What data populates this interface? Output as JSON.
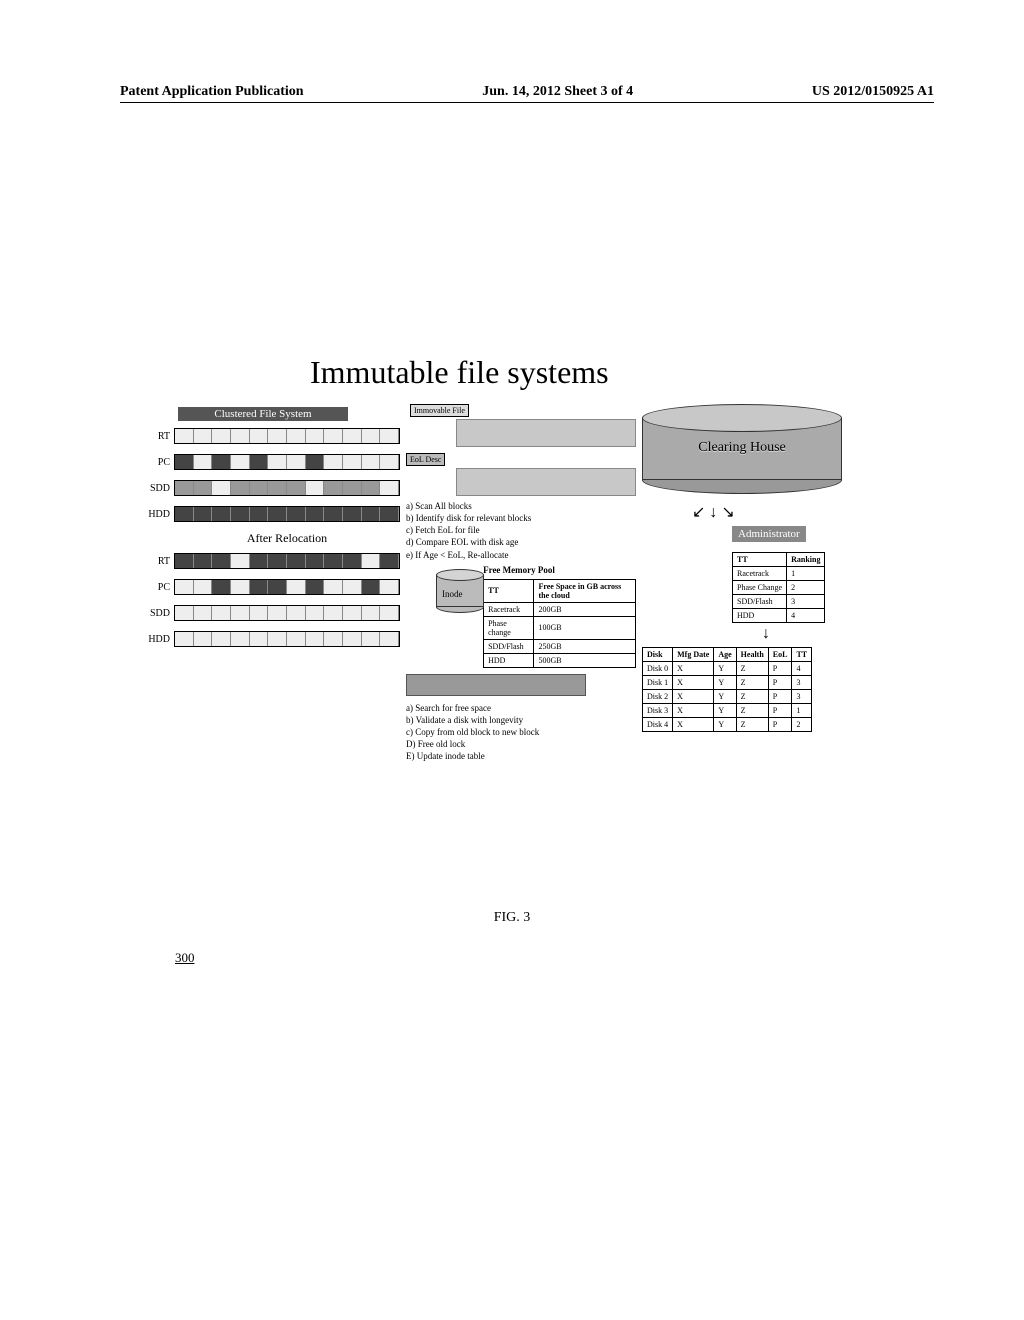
{
  "header": {
    "left": "Patent Application Publication",
    "center": "Jun. 14, 2012  Sheet 3 of 4",
    "right": "US 2012/0150925 A1"
  },
  "title": "Immutable file systems",
  "cfs": {
    "label": "Clustered File System",
    "rows": [
      "RT",
      "PC",
      "SDD",
      "HDD"
    ],
    "after_label": "After Relocation"
  },
  "mid": {
    "immovable": "Immovable File",
    "eol": "EoL Desc",
    "steps1": [
      "a) Scan All blocks",
      "b) Identify disk for relevant blocks",
      "c) Fetch EoL for file",
      "d) Compare EOL with disk age",
      "e) If Age < EoL, Re-allocate"
    ],
    "inode": "Inode",
    "pool_title": "Free Memory Pool",
    "pool": {
      "columns": [
        "TT",
        "Free Space in GB across the cloud"
      ],
      "rows": [
        [
          "Racetrack",
          "200GB"
        ],
        [
          "Phase change",
          "100GB"
        ],
        [
          "SDD/Flash",
          "250GB"
        ],
        [
          "HDD",
          "500GB"
        ]
      ]
    },
    "steps2": [
      "a) Search for free space",
      "b) Validate a disk with longevity",
      "c) Copy from old block to new block",
      "D) Free old lock",
      "E) Update inode table"
    ]
  },
  "right": {
    "clearing": "Clearing House",
    "admin": "Administrator",
    "rank": {
      "columns": [
        "TT",
        "Ranking"
      ],
      "rows": [
        [
          "Racetrack",
          "1"
        ],
        [
          "Phase Change",
          "2"
        ],
        [
          "SDD/Flash",
          "3"
        ],
        [
          "HDD",
          "4"
        ]
      ]
    },
    "disk": {
      "columns": [
        "Disk",
        "Mfg Date",
        "Age",
        "Health",
        "EoL",
        "TT"
      ],
      "rows": [
        [
          "Disk 0",
          "X",
          "Y",
          "Z",
          "P",
          "4"
        ],
        [
          "Disk 1",
          "X",
          "Y",
          "Z",
          "P",
          "3"
        ],
        [
          "Disk 2",
          "X",
          "Y",
          "Z",
          "P",
          "3"
        ],
        [
          "Disk 3",
          "X",
          "Y",
          "Z",
          "P",
          "1"
        ],
        [
          "Disk 4",
          "X",
          "Y",
          "Z",
          "P",
          "2"
        ]
      ]
    }
  },
  "figure": {
    "caption": "FIG. 3",
    "number": "300"
  },
  "bar_segments": {
    "before": {
      "RT": [
        "light",
        "light",
        "light",
        "light",
        "light",
        "light",
        "light",
        "light",
        "light",
        "light",
        "light",
        "light"
      ],
      "PC": [
        "dark",
        "light",
        "dark",
        "light",
        "dark",
        "light",
        "light",
        "dark",
        "light",
        "light",
        "light",
        "light"
      ],
      "SDD": [
        "mid",
        "mid",
        "light",
        "mid",
        "mid",
        "mid",
        "mid",
        "light",
        "mid",
        "mid",
        "mid",
        "light"
      ],
      "HDD": [
        "dark",
        "dark",
        "dark",
        "dark",
        "dark",
        "dark",
        "dark",
        "dark",
        "dark",
        "dark",
        "dark",
        "dark"
      ]
    },
    "after": {
      "RT": [
        "dark",
        "dark",
        "dark",
        "light",
        "dark",
        "dark",
        "dark",
        "dark",
        "dark",
        "dark",
        "light",
        "dark"
      ],
      "PC": [
        "light",
        "light",
        "dark",
        "light",
        "dark",
        "dark",
        "light",
        "dark",
        "light",
        "light",
        "dark",
        "light"
      ],
      "SDD": [
        "light",
        "light",
        "light",
        "light",
        "light",
        "light",
        "light",
        "light",
        "light",
        "light",
        "light",
        "light"
      ],
      "HDD": [
        "light",
        "light",
        "light",
        "light",
        "light",
        "light",
        "light",
        "light",
        "light",
        "light",
        "light",
        "light"
      ]
    }
  },
  "colors": {
    "dark": "#444444",
    "mid": "#999999",
    "light": "#eeeeee"
  }
}
